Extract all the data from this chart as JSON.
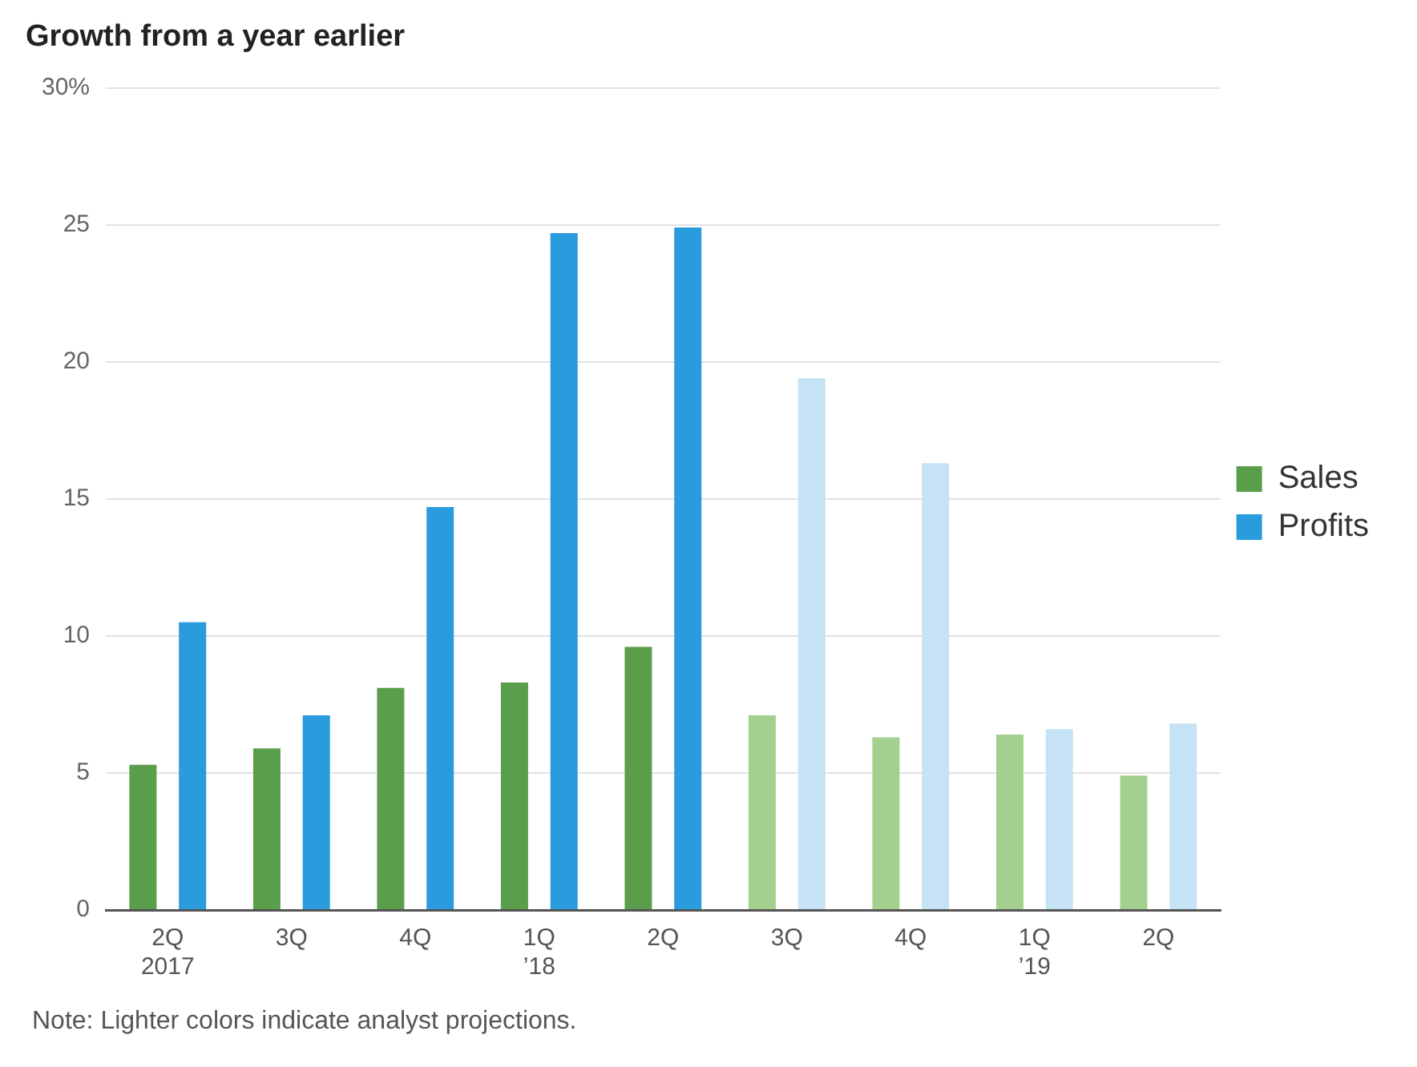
{
  "chart_data": {
    "type": "bar",
    "title": "Growth from a year earlier",
    "categories": [
      "2Q\n2017",
      "3Q",
      "4Q",
      "1Q\n’18",
      "2Q",
      "3Q",
      "4Q",
      "1Q\n’19",
      "2Q"
    ],
    "series": [
      {
        "name": "Sales",
        "color": "#5a9e4b",
        "colors": [
          "#5a9e4b",
          "#5a9e4b",
          "#5a9e4b",
          "#5a9e4b",
          "#5a9e4b",
          "#a3d08f",
          "#a3d08f",
          "#a3d08f",
          "#a3d08f"
        ],
        "values": [
          5.3,
          5.9,
          8.1,
          8.3,
          9.6,
          7.1,
          6.3,
          6.4,
          4.9
        ]
      },
      {
        "name": "Profits",
        "color": "#2a9bdc",
        "colors": [
          "#2a9bdc",
          "#2a9bdc",
          "#2a9bdc",
          "#2a9bdc",
          "#2a9bdc",
          "#c6e2f5",
          "#c6e2f5",
          "#c6e2f5",
          "#c6e2f5"
        ],
        "values": [
          10.5,
          7.1,
          14.7,
          24.7,
          24.9,
          19.4,
          16.3,
          6.6,
          6.8
        ]
      }
    ],
    "ylim": [
      0,
      30
    ],
    "yticks": [
      0,
      5,
      10,
      15,
      20,
      25,
      {
        "value": 30,
        "label": "30%"
      }
    ],
    "grid": "y",
    "legend": "right",
    "annotations": [
      "Note: Lighter colors indicate analyst projections."
    ]
  }
}
